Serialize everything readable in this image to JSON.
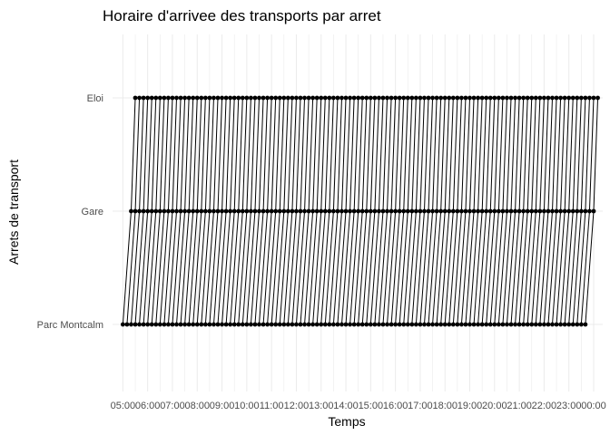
{
  "chart_data": {
    "type": "line",
    "title": "Horaire d'arrivee des transports par arret",
    "xlabel": "Temps",
    "ylabel": "Arrets de transport",
    "x_ticks": [
      "05:00",
      "06:00",
      "07:00",
      "08:00",
      "09:00",
      "10:00",
      "11:00",
      "12:00",
      "13:00",
      "14:00",
      "15:00",
      "16:00",
      "17:00",
      "18:00",
      "19:00",
      "20:00",
      "21:00",
      "22:00",
      "23:00",
      "00:00"
    ],
    "xlim": [
      "04:35",
      "00:22"
    ],
    "categories": [
      "Parc Montcalm",
      "Gare",
      "Eloi"
    ],
    "trip_interval_minutes": 10,
    "series": [
      {
        "stop": "Parc Montcalm",
        "first": "05:00",
        "last": "23:40"
      },
      {
        "stop": "Gare",
        "first": "05:20",
        "last": "00:00"
      },
      {
        "stop": "Eloi",
        "first": "05:30",
        "last": "00:10"
      }
    ],
    "grid": true,
    "legend": "none",
    "line_color": "#000000",
    "grid_color": "#ebebeb"
  }
}
